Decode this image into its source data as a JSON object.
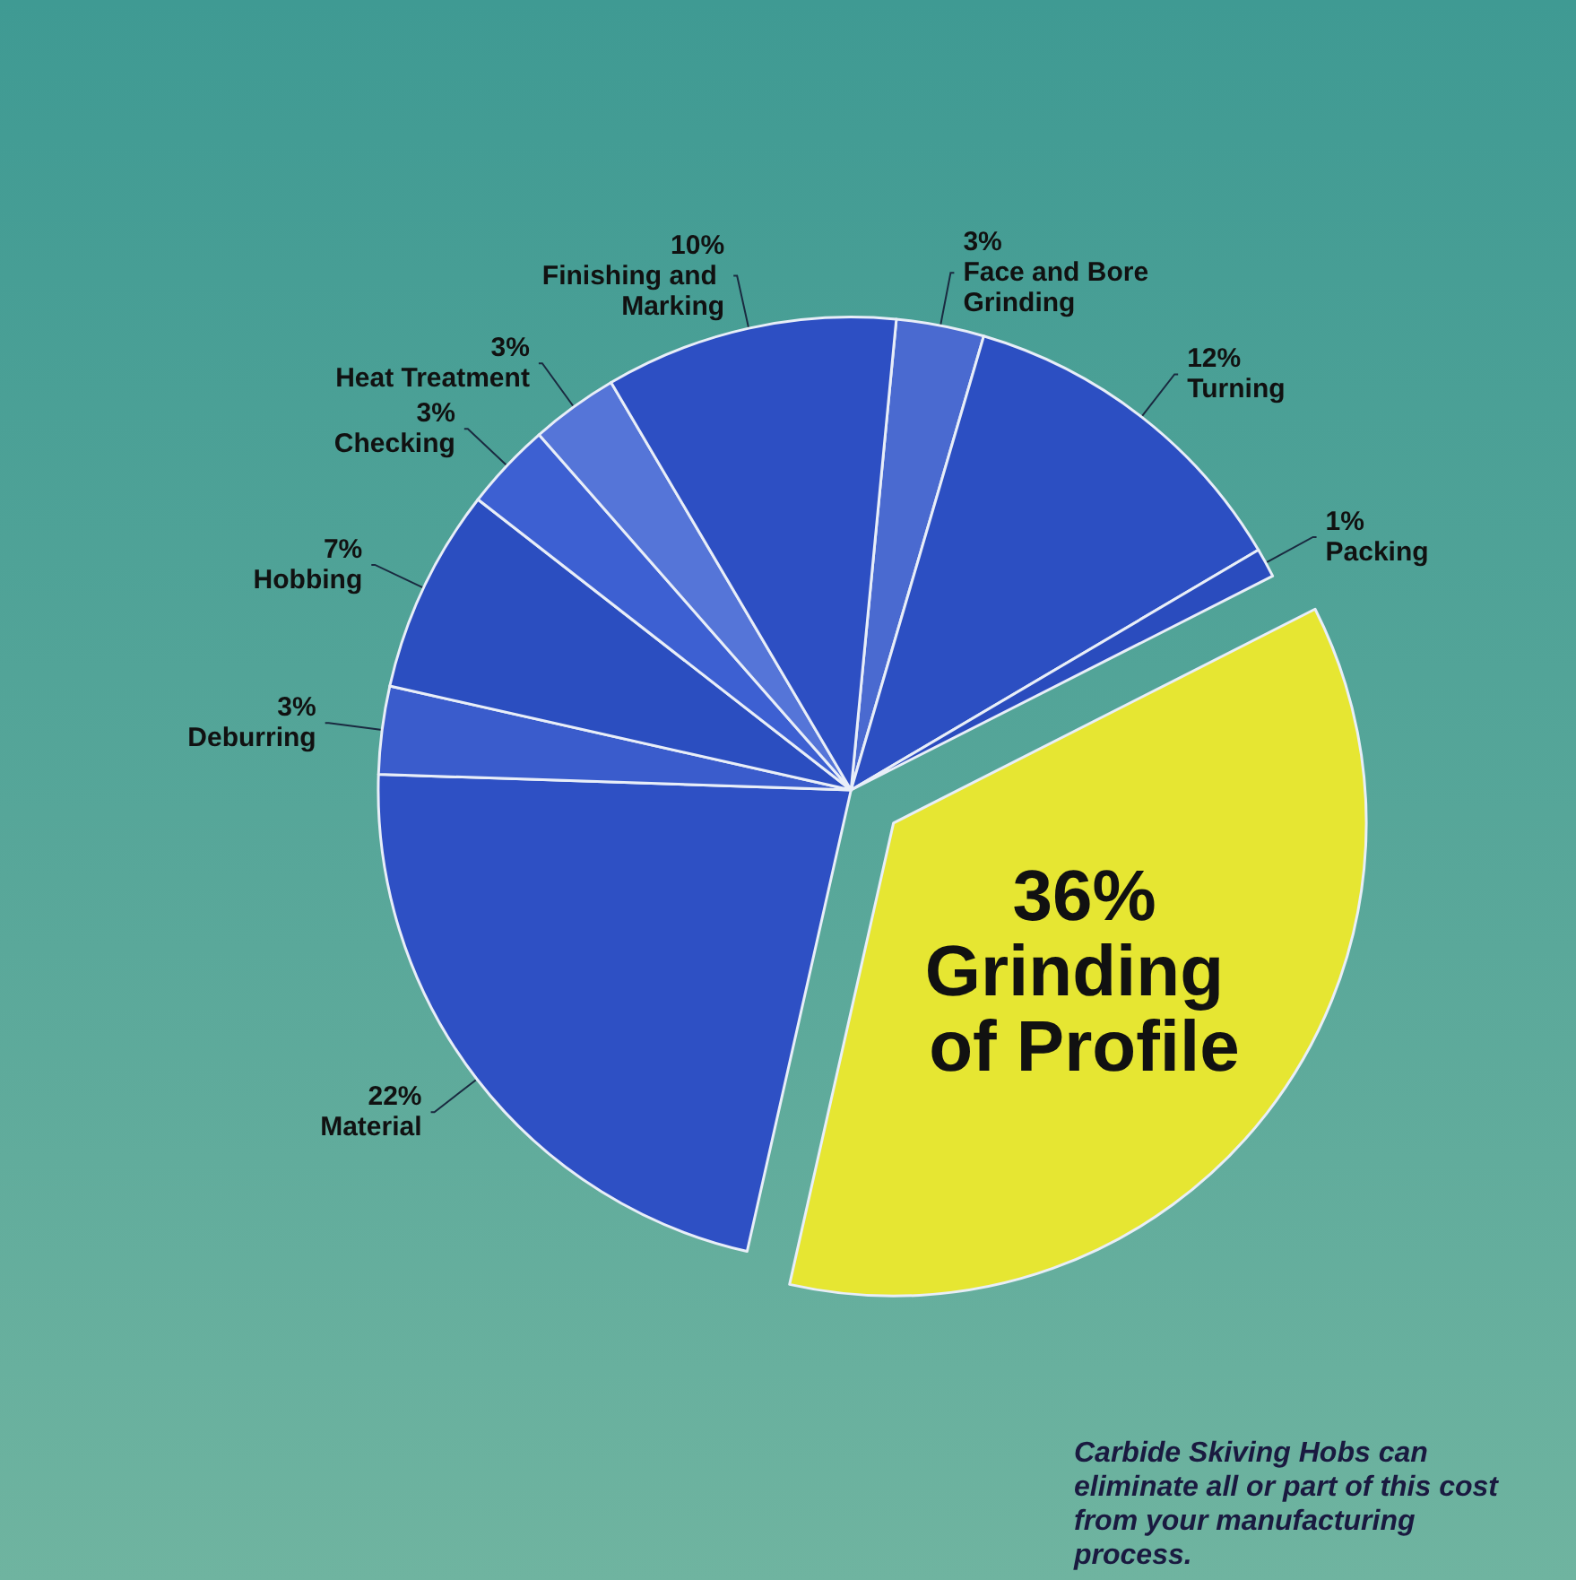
{
  "chart_data": {
    "type": "pie",
    "categories": [
      "Face and Bore Grinding",
      "Turning",
      "Packing",
      "Grinding of Profile",
      "Material",
      "Deburring",
      "Hobbing",
      "Checking",
      "Heat Treatment",
      "Finishing and Marking"
    ],
    "values": [
      3,
      12,
      1,
      36,
      22,
      3,
      7,
      3,
      3,
      10
    ],
    "value_labels": [
      "3%",
      "12%",
      "1%",
      "36%",
      "22%",
      "3%",
      "7%",
      "3%",
      "3%",
      "10%"
    ],
    "colors": [
      "#4a6ad0",
      "#2c4fc2",
      "#2a4cbe",
      "#e6e632",
      "#2e50c4",
      "#3a5ccc",
      "#2b4ec0",
      "#3d60d2",
      "#5575d8",
      "#2d4fc3"
    ],
    "legend": false,
    "annotations": [
      "Carbide Skiving Hobs can eliminate all or part of this cost from your manufacturing process."
    ]
  }
}
